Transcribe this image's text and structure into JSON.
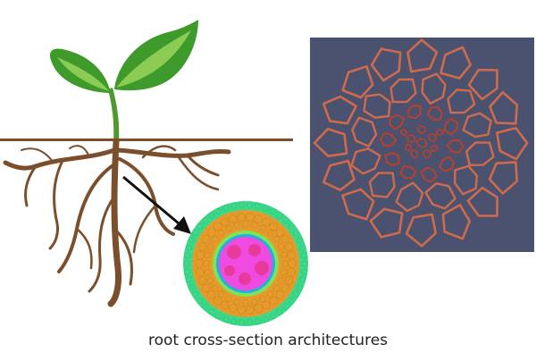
{
  "caption": "root cross-section architectures",
  "colors": {
    "leaf_dark": "#3f9a2c",
    "leaf_light": "#7dc243",
    "root_brown": "#7b4f2c",
    "ground_line": "#7b4f2c",
    "arrow": "#111111",
    "panel_bg": "#4a5270",
    "cell_wall": "#cf6a4b",
    "stele_wall": "#b8402c",
    "epidermis": "#3bd98a",
    "cortex": "#e59a2a",
    "endodermis": "#7de35a",
    "pericycle": "#1fb0e0",
    "stele": "#f04be0",
    "xylem": "#e83a9c"
  },
  "icons": {
    "plant": "seedling-with-roots-illustration",
    "section": "root-cross-section-diagram",
    "micrograph": "root-cell-wall-network-image"
  }
}
